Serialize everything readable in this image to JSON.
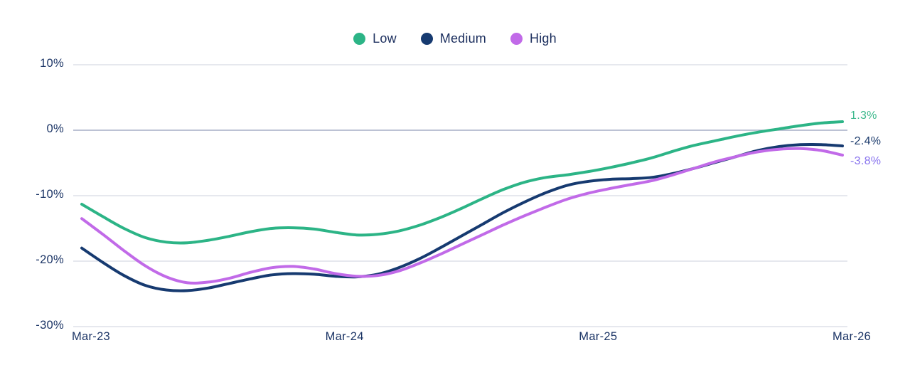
{
  "chart_data": {
    "type": "line",
    "title": "",
    "x_axis": {
      "tick_labels": [
        "Mar-23",
        "Mar-24",
        "Mar-25",
        "Mar-26"
      ],
      "tick_month_index": [
        0,
        12,
        24,
        36
      ],
      "unit": "month",
      "range_months": [
        0,
        36
      ]
    },
    "y_axis": {
      "tick_labels": [
        "10%",
        "0%",
        "-10%",
        "-20%",
        "-30%"
      ],
      "tick_values": [
        10,
        0,
        -10,
        -20,
        -30
      ],
      "range": [
        -30,
        10
      ],
      "unit": "%"
    },
    "grid": "horizontal",
    "legend_position": "top-center",
    "series": [
      {
        "name": "Low",
        "color": "#2cb486",
        "end_label": "1.3%",
        "end_label_color": "#3bb88b",
        "values": [
          -11.3,
          -13.2,
          -15.0,
          -16.4,
          -17.1,
          -17.2,
          -16.8,
          -16.2,
          -15.5,
          -15.0,
          -14.9,
          -15.1,
          -15.6,
          -16.0,
          -15.9,
          -15.4,
          -14.5,
          -13.3,
          -11.9,
          -10.4,
          -9.0,
          -7.9,
          -7.2,
          -6.8,
          -6.3,
          -5.7,
          -5.0,
          -4.2,
          -3.2,
          -2.3,
          -1.6,
          -0.9,
          -0.3,
          0.2,
          0.7,
          1.1,
          1.3
        ]
      },
      {
        "name": "Medium",
        "color": "#163a70",
        "end_label": "-2.4%",
        "end_label_color": "#1b3a6b",
        "values": [
          -18.0,
          -20.2,
          -22.2,
          -23.7,
          -24.4,
          -24.5,
          -24.1,
          -23.4,
          -22.7,
          -22.1,
          -21.9,
          -22.0,
          -22.3,
          -22.4,
          -22.0,
          -21.0,
          -19.6,
          -17.9,
          -16.1,
          -14.3,
          -12.5,
          -10.9,
          -9.5,
          -8.4,
          -7.8,
          -7.5,
          -7.4,
          -7.2,
          -6.6,
          -5.8,
          -4.9,
          -4.0,
          -3.1,
          -2.5,
          -2.2,
          -2.2,
          -2.4
        ]
      },
      {
        "name": "High",
        "color": "#c16ae8",
        "end_label": "-3.8%",
        "end_label_color": "#8873ee",
        "values": [
          -13.5,
          -15.9,
          -18.4,
          -20.7,
          -22.4,
          -23.3,
          -23.2,
          -22.6,
          -21.7,
          -21.0,
          -20.8,
          -21.2,
          -21.9,
          -22.3,
          -22.2,
          -21.5,
          -20.3,
          -18.9,
          -17.4,
          -15.9,
          -14.4,
          -13.0,
          -11.7,
          -10.5,
          -9.6,
          -8.9,
          -8.3,
          -7.7,
          -6.8,
          -5.8,
          -4.8,
          -4.0,
          -3.3,
          -2.9,
          -2.8,
          -3.1,
          -3.8
        ]
      }
    ],
    "colors": {
      "grid": "#dee1e8",
      "zero_line": "#a6aec6",
      "tick_text": "#1c3566",
      "background": "#ffffff"
    }
  }
}
